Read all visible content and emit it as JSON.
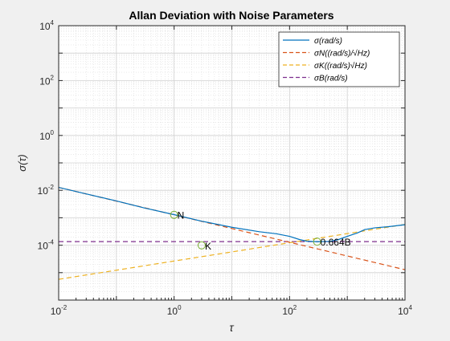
{
  "chart_data": {
    "type": "line",
    "title": "Allan Deviation with Noise Parameters",
    "xlabel": "τ",
    "ylabel": "σ(τ)",
    "x_scale": "log",
    "y_scale": "log",
    "xlim": [
      0.01,
      10000
    ],
    "ylim": [
      1e-06,
      10000
    ],
    "x_ticks": [
      {
        "value": 0.01,
        "base": "10",
        "exp": "-2"
      },
      {
        "value": 1,
        "base": "10",
        "exp": "0"
      },
      {
        "value": 100,
        "base": "10",
        "exp": "2"
      },
      {
        "value": 10000,
        "base": "10",
        "exp": "4"
      }
    ],
    "y_ticks": [
      {
        "value": 0.0001,
        "base": "10",
        "exp": "-4"
      },
      {
        "value": 0.01,
        "base": "10",
        "exp": "-2"
      },
      {
        "value": 1,
        "base": "10",
        "exp": "0"
      },
      {
        "value": 100,
        "base": "10",
        "exp": "2"
      },
      {
        "value": 10000,
        "base": "10",
        "exp": "4"
      }
    ],
    "grid": true,
    "legend_position": "top-right",
    "series": [
      {
        "name": "σ(rad/s)",
        "color": "#0072bd",
        "style": "solid",
        "x": [
          0.01,
          0.03,
          0.1,
          0.3,
          1,
          3,
          10,
          30,
          60,
          100,
          150,
          200,
          300,
          500,
          700,
          1000,
          1500,
          2000,
          3000,
          5000,
          7000,
          10000
        ],
        "y": [
          0.0128,
          0.0074,
          0.0041,
          0.0023,
          0.0013,
          0.00075,
          0.00045,
          0.00031,
          0.00026,
          0.00021,
          0.00016,
          0.00014,
          0.000134,
          0.000138,
          0.00016,
          0.00021,
          0.00028,
          0.00037,
          0.00043,
          0.00047,
          0.00051,
          0.00056
        ]
      },
      {
        "name": "σN((rad/s)/√Hz)",
        "color": "#d95319",
        "style": "dashed",
        "x": [
          0.01,
          10000
        ],
        "y": [
          0.0128,
          1.28e-05
        ]
      },
      {
        "name": "σK((rad/s)√Hz)",
        "color": "#edb120",
        "style": "dashed",
        "x": [
          0.01,
          10000
        ],
        "y": [
          5.7e-06,
          0.00057
        ]
      },
      {
        "name": "σB(rad/s)",
        "color": "#7e2f8e",
        "style": "dashed",
        "x": [
          0.01,
          10000
        ],
        "y": [
          0.000135,
          0.000135
        ]
      }
    ],
    "markers": [
      {
        "name": "N",
        "x": 1,
        "y": 0.00128,
        "label": "N"
      },
      {
        "name": "K",
        "x": 3,
        "y": 9.87e-05,
        "label": "K"
      },
      {
        "name": "B",
        "x": 300,
        "y": 0.000135,
        "label": "0.664B"
      }
    ]
  }
}
